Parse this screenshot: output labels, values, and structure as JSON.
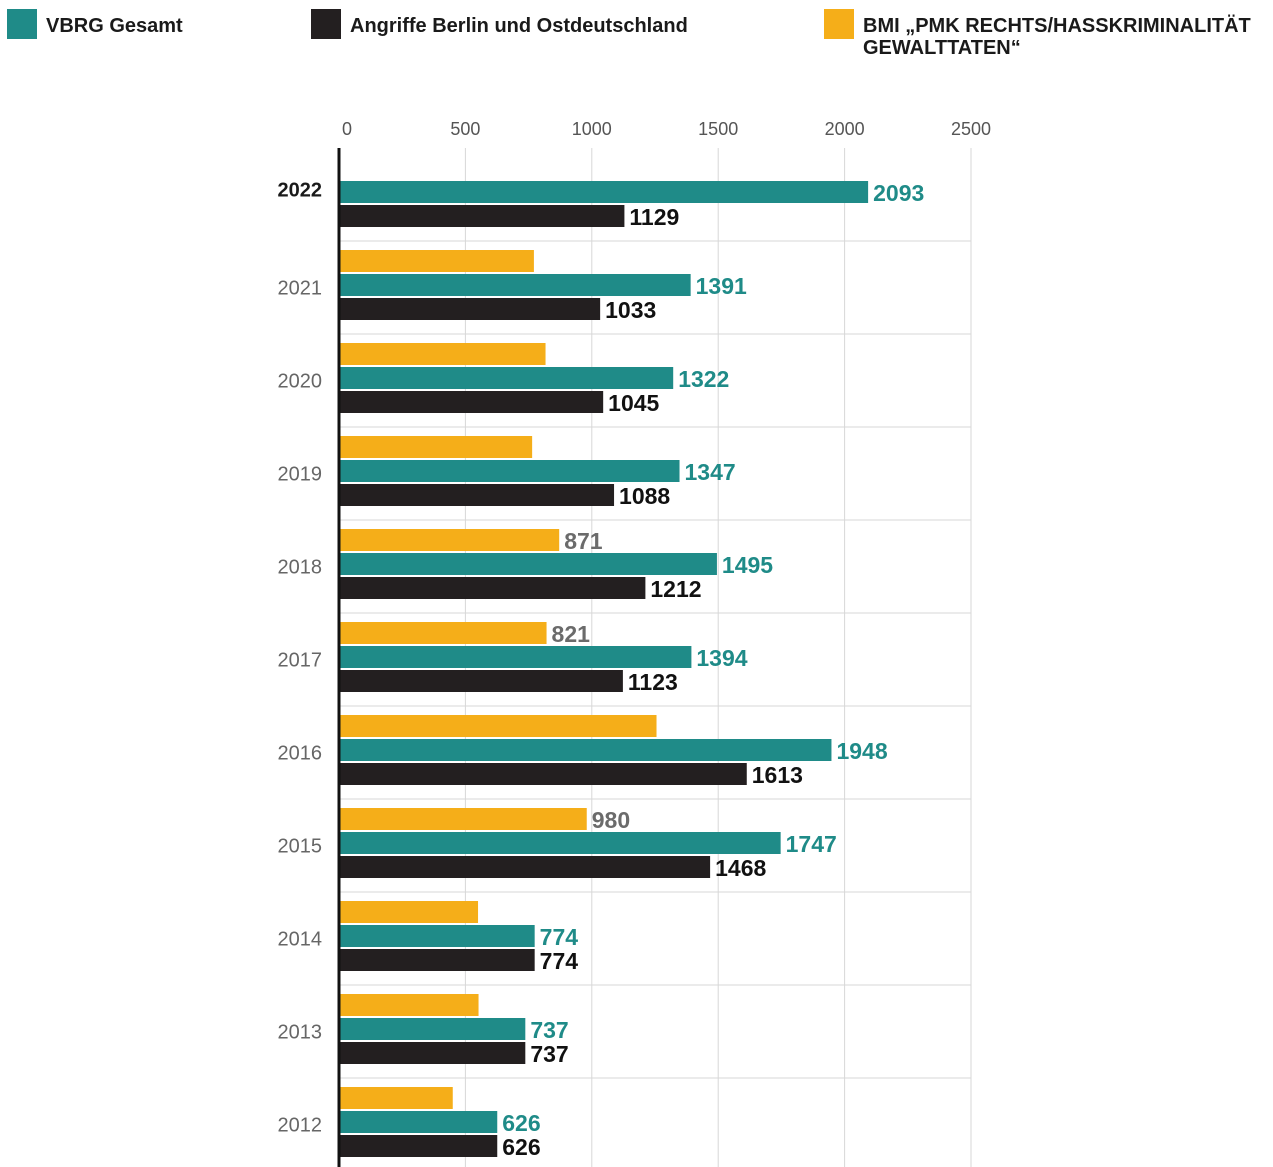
{
  "legend": [
    {
      "label": "VBRG Gesamt",
      "color": "#1f8b88"
    },
    {
      "label": "Angriffe Berlin und Ostdeutschland",
      "color": "#231f20"
    },
    {
      "label": "BMI „PMK RECHTS/HASSKRIMINALITÄT GEWALTTATEN“",
      "color": "#f5ae19"
    }
  ],
  "chart_data": {
    "type": "bar",
    "orientation": "horizontal",
    "categories": [
      "2022",
      "2021",
      "2020",
      "2019",
      "2018",
      "2017",
      "2016",
      "2015",
      "2014",
      "2013",
      "2012"
    ],
    "highlight_category": "2022",
    "xlim": [
      0,
      2500
    ],
    "xticks": [
      "0",
      "500",
      "1000",
      "1500",
      "2000",
      "2500"
    ],
    "grid": true,
    "legend_position": "top",
    "series": [
      {
        "name": "BMI „PMK RECHTS/HASSKRIMINALITÄT GEWALTTATEN“",
        "color": "#f5ae19",
        "label_color": "#6b6b6b",
        "values": [
          null,
          771,
          817,
          764,
          871,
          821,
          1256,
          980,
          550,
          552,
          450
        ],
        "labels": [
          "",
          "",
          "",
          "",
          "871",
          "821",
          "",
          "980",
          "",
          "",
          ""
        ]
      },
      {
        "name": "VBRG Gesamt",
        "color": "#1f8b88",
        "label_color": "#1f8b88",
        "values": [
          2093,
          1391,
          1322,
          1347,
          1495,
          1394,
          1948,
          1747,
          774,
          737,
          626
        ],
        "labels": [
          "2093",
          "1391",
          "1322",
          "1347",
          "1495",
          "1394",
          "1948",
          "1747",
          "774",
          "737",
          "626"
        ]
      },
      {
        "name": "Angriffe Berlin und Ostdeutschland",
        "color": "#231f20",
        "label_color": "#111111",
        "values": [
          1129,
          1033,
          1045,
          1088,
          1212,
          1123,
          1613,
          1468,
          774,
          737,
          626
        ],
        "labels": [
          "1129",
          "1033",
          "1045",
          "1088",
          "1212",
          "1123",
          "1613",
          "1468",
          "774",
          "737",
          "626"
        ]
      }
    ]
  }
}
